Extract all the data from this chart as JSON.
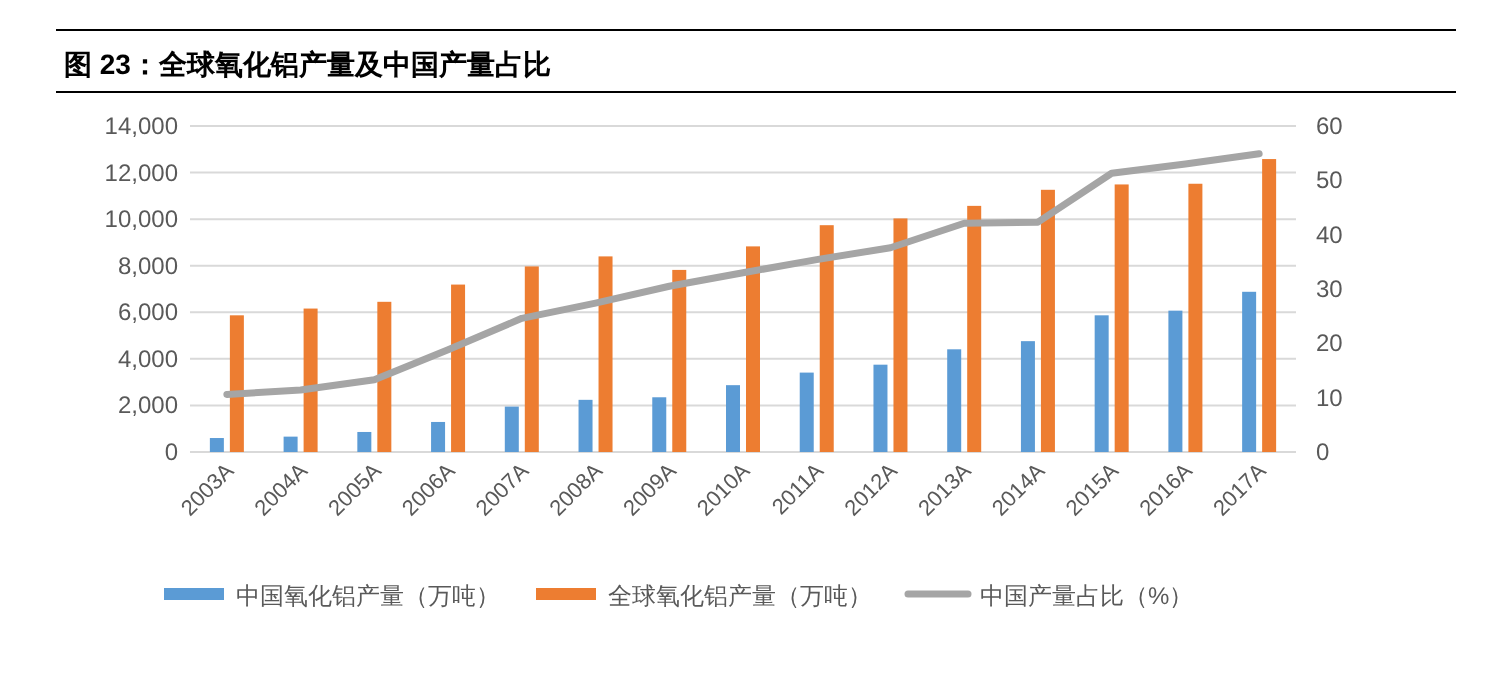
{
  "chart_data": {
    "type": "bar",
    "title": "图 23：全球氧化铝产量及中国产量占比",
    "categories": [
      "2003A",
      "2004A",
      "2005A",
      "2006A",
      "2007A",
      "2008A",
      "2009A",
      "2010A",
      "2011A",
      "2012A",
      "2013A",
      "2014A",
      "2015A",
      "2016A",
      "2017A"
    ],
    "series": [
      {
        "name": "中国氧化铝产量（万吨）",
        "color": "#5b9bd5",
        "values": [
          600,
          660,
          860,
          1290,
          1950,
          2240,
          2350,
          2870,
          3410,
          3750,
          4410,
          4760,
          5870,
          6070,
          6880
        ]
      },
      {
        "name": "全球氧化铝产量（万吨）",
        "color": "#ed7d31",
        "values": [
          5870,
          6160,
          6450,
          7190,
          7970,
          8400,
          7820,
          8830,
          9740,
          10030,
          10570,
          11260,
          11490,
          11520,
          12580
        ]
      },
      {
        "name": "中国产量占比（%）",
        "color": "#a5a5a5",
        "type": "line",
        "axis": "y2",
        "values": [
          10.6,
          11.4,
          13.3,
          18.8,
          24.6,
          27.4,
          30.5,
          33.0,
          35.4,
          37.6,
          42.1,
          42.3,
          51.3,
          53.0,
          54.9
        ]
      }
    ],
    "ylim": [
      0,
      14000
    ],
    "yticks": [
      0,
      {
        "value": 2000,
        "label": "2,000"
      },
      {
        "value": 4000,
        "label": "4,000"
      },
      {
        "value": 6000,
        "label": "6,000"
      },
      {
        "value": 8000,
        "label": "8,000"
      },
      {
        "value": 10000,
        "label": "10,000"
      },
      {
        "value": 12000,
        "label": "12,000"
      },
      {
        "value": 14000,
        "label": "14,000"
      }
    ],
    "y2lim": [
      0,
      60
    ],
    "y2ticks": [
      0,
      10,
      20,
      30,
      40,
      50,
      60
    ],
    "grid": "y",
    "legend": "bottom"
  }
}
